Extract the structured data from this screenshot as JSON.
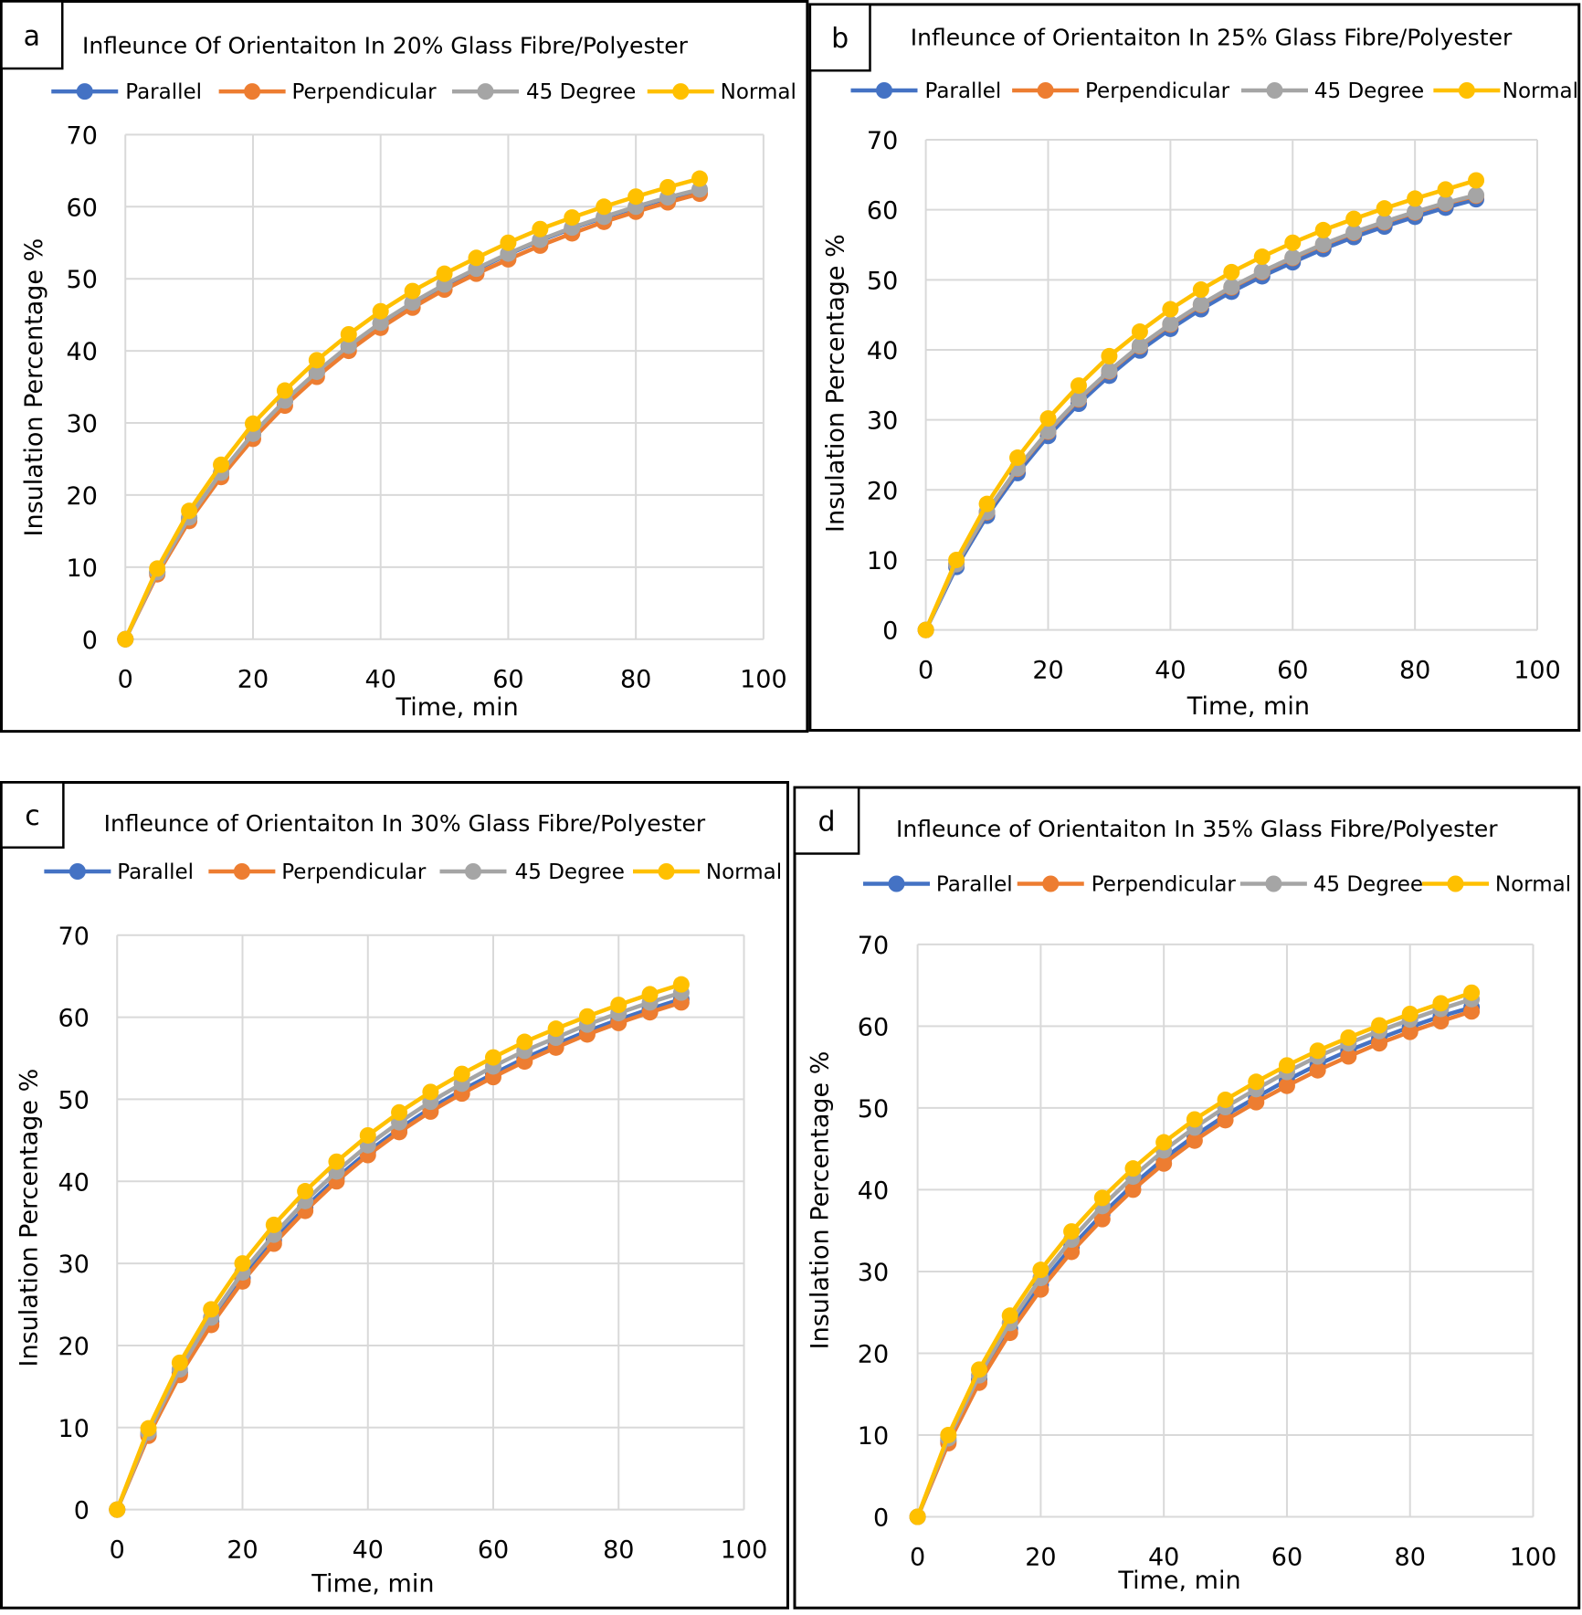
{
  "colors": {
    "Parallel": "#4472C4",
    "Perpendicular": "#ED7D31",
    "45 Degree": "#A5A5A5",
    "Normal": "#FFC000"
  },
  "chart_data": [
    {
      "panel": "a",
      "type": "line",
      "title": "Infleunce Of Orientaiton In 20% Glass Fibre/Polyester",
      "xlabel": "Time, min",
      "ylabel": "Insulation Percentage %",
      "xlim": [
        0,
        100
      ],
      "ylim": [
        0,
        70
      ],
      "xticks": [
        "0",
        "20",
        "40",
        "60",
        "80",
        "100"
      ],
      "yticks": [
        "0",
        "10",
        "20",
        "30",
        "40",
        "50",
        "60",
        "70"
      ],
      "grid": true,
      "legend": "top",
      "x": [
        0,
        5,
        10,
        15,
        20,
        25,
        30,
        35,
        40,
        45,
        50,
        55,
        60,
        65,
        70,
        75,
        80,
        85,
        90
      ],
      "series": [
        {
          "name": "Parallel",
          "values": [
            0,
            9.3,
            16.8,
            23.0,
            28.4,
            33.0,
            37.0,
            40.6,
            43.8,
            46.6,
            49.1,
            51.3,
            53.4,
            55.3,
            57.0,
            58.5,
            59.9,
            61.2,
            62.3
          ]
        },
        {
          "name": "Perpendicular",
          "values": [
            0,
            9.0,
            16.4,
            22.5,
            27.8,
            32.4,
            36.4,
            40.0,
            43.2,
            46.0,
            48.5,
            50.7,
            52.7,
            54.6,
            56.3,
            57.9,
            59.3,
            60.6,
            61.8
          ]
        },
        {
          "name": "45 Degree",
          "values": [
            0,
            9.3,
            16.9,
            23.1,
            28.5,
            33.1,
            37.1,
            40.7,
            43.9,
            46.7,
            49.2,
            51.4,
            53.5,
            55.4,
            57.1,
            58.6,
            60.0,
            61.3,
            62.4
          ]
        },
        {
          "name": "Normal",
          "values": [
            0,
            9.8,
            17.8,
            24.2,
            29.9,
            34.5,
            38.7,
            42.3,
            45.5,
            48.3,
            50.7,
            52.9,
            55.0,
            56.9,
            58.5,
            60.0,
            61.4,
            62.7,
            63.9
          ]
        }
      ]
    },
    {
      "panel": "b",
      "type": "line",
      "title": "Infleunce of Orientaiton In 25% Glass  Fibre/Polyester",
      "xlabel": "Time, min",
      "ylabel": "Insulation Percentage %",
      "xlim": [
        0,
        100
      ],
      "ylim": [
        0,
        70
      ],
      "xticks": [
        "0",
        "20",
        "40",
        "60",
        "80",
        "100"
      ],
      "yticks": [
        "0",
        "10",
        "20",
        "30",
        "40",
        "50",
        "60",
        "70"
      ],
      "grid": true,
      "legend": "top",
      "x": [
        0,
        5,
        10,
        15,
        20,
        25,
        30,
        35,
        40,
        45,
        50,
        55,
        60,
        65,
        70,
        75,
        80,
        85,
        90
      ],
      "series": [
        {
          "name": "Parallel",
          "values": [
            0,
            9.0,
            16.3,
            22.4,
            27.7,
            32.3,
            36.3,
            39.9,
            43.0,
            45.8,
            48.3,
            50.5,
            52.5,
            54.4,
            56.1,
            57.6,
            59.0,
            60.3,
            61.5
          ]
        },
        {
          "name": "Perpendicular",
          "values": [
            0,
            9.4,
            16.8,
            23.0,
            28.3,
            32.9,
            36.9,
            40.5,
            43.6,
            46.4,
            48.9,
            51.1,
            53.1,
            55.0,
            56.7,
            58.2,
            59.6,
            60.9,
            62.0
          ]
        },
        {
          "name": "45 Degree",
          "values": [
            0,
            9.4,
            16.9,
            23.1,
            28.4,
            33.0,
            37.0,
            40.6,
            43.7,
            46.5,
            49.0,
            51.2,
            53.2,
            55.1,
            56.8,
            58.3,
            59.7,
            61.0,
            62.1
          ]
        },
        {
          "name": "Normal",
          "values": [
            0,
            10.0,
            18.0,
            24.6,
            30.2,
            34.9,
            39.1,
            42.6,
            45.8,
            48.6,
            51.1,
            53.3,
            55.3,
            57.1,
            58.7,
            60.2,
            61.6,
            62.9,
            64.2
          ]
        }
      ]
    },
    {
      "panel": "c",
      "type": "line",
      "title": "Infleunce of Orientaiton In 30% Glass Fibre/Polyester",
      "xlabel": "Time, min",
      "ylabel": "Insulation Percentage %",
      "xlim": [
        0,
        100
      ],
      "ylim": [
        0,
        70
      ],
      "xticks": [
        "0",
        "20",
        "40",
        "60",
        "80",
        "100"
      ],
      "yticks": [
        "0",
        "10",
        "20",
        "30",
        "40",
        "50",
        "60",
        "70"
      ],
      "grid": true,
      "legend": "top",
      "x": [
        0,
        5,
        10,
        15,
        20,
        25,
        30,
        35,
        40,
        45,
        50,
        55,
        60,
        65,
        70,
        75,
        80,
        85,
        90
      ],
      "series": [
        {
          "name": "Parallel",
          "values": [
            0,
            9.2,
            16.7,
            22.9,
            28.2,
            32.8,
            36.8,
            40.4,
            43.6,
            46.4,
            48.9,
            51.1,
            53.1,
            55.0,
            56.7,
            58.3,
            59.7,
            61.0,
            62.2
          ]
        },
        {
          "name": "Perpendicular",
          "values": [
            0,
            9.0,
            16.4,
            22.5,
            27.8,
            32.4,
            36.4,
            40.0,
            43.2,
            46.0,
            48.5,
            50.7,
            52.7,
            54.6,
            56.3,
            57.9,
            59.3,
            60.6,
            61.8
          ]
        },
        {
          "name": "45 Degree",
          "values": [
            0,
            9.4,
            17.1,
            23.4,
            28.9,
            33.5,
            37.6,
            41.2,
            44.4,
            47.2,
            49.7,
            51.9,
            54.0,
            55.9,
            57.5,
            59.1,
            60.5,
            61.8,
            63.0
          ]
        },
        {
          "name": "Normal",
          "values": [
            0,
            9.9,
            17.9,
            24.4,
            30.0,
            34.7,
            38.8,
            42.4,
            45.6,
            48.4,
            50.9,
            53.1,
            55.1,
            57.0,
            58.6,
            60.1,
            61.5,
            62.8,
            64.0
          ]
        }
      ]
    },
    {
      "panel": "d",
      "type": "line",
      "title": "Infleunce of Orientaiton In 35% Glass Fibre/Polyester",
      "xlabel": "Time, min",
      "ylabel": "Insulation Percentage %",
      "xlim": [
        0,
        100
      ],
      "ylim": [
        0,
        70
      ],
      "xticks": [
        "0",
        "20",
        "40",
        "60",
        "80",
        "100"
      ],
      "yticks": [
        "0",
        "10",
        "20",
        "30",
        "40",
        "50",
        "60",
        "70"
      ],
      "grid": true,
      "legend": "top",
      "x": [
        0,
        5,
        10,
        15,
        20,
        25,
        30,
        35,
        40,
        45,
        50,
        55,
        60,
        65,
        70,
        75,
        80,
        85,
        90
      ],
      "series": [
        {
          "name": "Parallel",
          "values": [
            0,
            9.3,
            16.8,
            23.0,
            28.4,
            33.0,
            37.0,
            40.6,
            43.8,
            46.6,
            49.1,
            51.3,
            53.4,
            55.3,
            57.0,
            58.5,
            59.9,
            61.2,
            62.3
          ]
        },
        {
          "name": "Perpendicular",
          "values": [
            0,
            9.0,
            16.4,
            22.5,
            27.8,
            32.4,
            36.4,
            40.0,
            43.2,
            46.0,
            48.5,
            50.7,
            52.7,
            54.6,
            56.3,
            57.9,
            59.3,
            60.6,
            61.8
          ]
        },
        {
          "name": "45 Degree",
          "values": [
            0,
            9.6,
            17.3,
            23.7,
            29.2,
            33.9,
            38.0,
            41.6,
            44.8,
            47.6,
            50.1,
            52.3,
            54.4,
            56.3,
            57.9,
            59.4,
            60.8,
            62.1,
            63.3
          ]
        },
        {
          "name": "Normal",
          "values": [
            0,
            10.0,
            18.0,
            24.6,
            30.2,
            34.9,
            39.0,
            42.6,
            45.8,
            48.6,
            51.0,
            53.2,
            55.2,
            57.0,
            58.6,
            60.1,
            61.5,
            62.8,
            64.1
          ]
        }
      ]
    }
  ]
}
